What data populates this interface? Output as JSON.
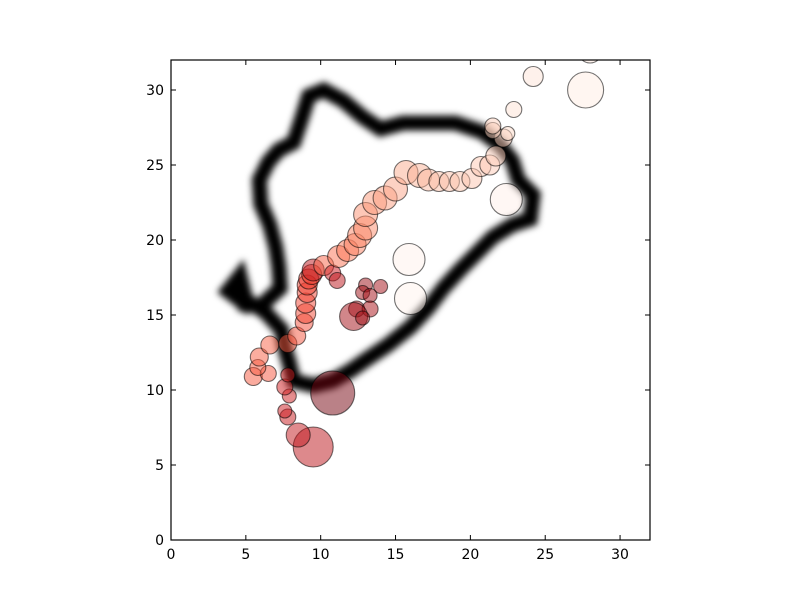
{
  "chart_data": {
    "type": "scatter",
    "title": "",
    "xlabel": "",
    "ylabel": "",
    "xlim": [
      0,
      32
    ],
    "ylim": [
      0,
      32
    ],
    "xticks": [
      0,
      5,
      10,
      15,
      20,
      25,
      30
    ],
    "yticks": [
      0,
      5,
      10,
      15,
      20,
      25,
      30
    ],
    "grid": false,
    "legend": "none",
    "colormap": "Reds",
    "marker_edge_color": "#000000",
    "marker_alpha": 0.5,
    "background_track": {
      "description_free": true,
      "color": "#000000",
      "outline": [
        [
          5.0,
          15.7
        ],
        [
          3.8,
          16.6
        ],
        [
          4.6,
          17.6
        ],
        [
          5.0,
          16.0
        ],
        [
          6.3,
          15.2
        ],
        [
          7.4,
          14.0
        ],
        [
          7.6,
          12.8
        ],
        [
          7.9,
          11.8
        ],
        [
          8.2,
          10.6
        ],
        [
          9.5,
          10.3
        ],
        [
          10.8,
          10.6
        ],
        [
          12.0,
          11.3
        ],
        [
          13.0,
          12.0
        ],
        [
          14.5,
          13.0
        ],
        [
          16.0,
          14.2
        ],
        [
          17.2,
          15.5
        ],
        [
          18.2,
          16.8
        ],
        [
          19.3,
          18.0
        ],
        [
          20.3,
          19.0
        ],
        [
          21.5,
          20.2
        ],
        [
          22.8,
          21.0
        ],
        [
          24.0,
          21.4
        ],
        [
          24.2,
          23.0
        ],
        [
          23.2,
          24.0
        ],
        [
          22.8,
          25.3
        ],
        [
          22.0,
          26.3
        ],
        [
          20.8,
          27.2
        ],
        [
          19.0,
          27.8
        ],
        [
          17.0,
          27.8
        ],
        [
          15.5,
          27.8
        ],
        [
          14.0,
          27.4
        ],
        [
          12.8,
          28.2
        ],
        [
          11.5,
          29.3
        ],
        [
          10.2,
          30.0
        ],
        [
          9.2,
          29.6
        ],
        [
          8.7,
          28.0
        ],
        [
          8.2,
          26.5
        ],
        [
          7.2,
          26.0
        ],
        [
          6.5,
          25.2
        ],
        [
          5.9,
          24.0
        ],
        [
          6.0,
          22.4
        ],
        [
          6.6,
          21.0
        ],
        [
          7.0,
          19.5
        ],
        [
          7.2,
          18.2
        ],
        [
          7.3,
          16.8
        ],
        [
          6.0,
          15.6
        ],
        [
          5.0,
          15.7
        ]
      ]
    },
    "points": [
      {
        "x": 9.5,
        "y": 6.2,
        "size": 20,
        "c": 0.8
      },
      {
        "x": 8.5,
        "y": 7.0,
        "size": 12,
        "c": 0.78
      },
      {
        "x": 7.8,
        "y": 8.2,
        "size": 8,
        "c": 0.76
      },
      {
        "x": 7.6,
        "y": 8.6,
        "size": 7,
        "c": 0.75
      },
      {
        "x": 7.9,
        "y": 9.6,
        "size": 7,
        "c": 0.74
      },
      {
        "x": 7.6,
        "y": 10.2,
        "size": 8,
        "c": 0.73
      },
      {
        "x": 10.8,
        "y": 9.8,
        "size": 22,
        "c": 0.97
      },
      {
        "x": 7.8,
        "y": 11.0,
        "size": 7,
        "c": 0.72
      },
      {
        "x": 5.5,
        "y": 10.9,
        "size": 9,
        "c": 0.55
      },
      {
        "x": 6.5,
        "y": 11.1,
        "size": 8,
        "c": 0.56
      },
      {
        "x": 5.8,
        "y": 11.5,
        "size": 8,
        "c": 0.55
      },
      {
        "x": 5.9,
        "y": 12.2,
        "size": 9,
        "c": 0.54
      },
      {
        "x": 6.6,
        "y": 13.0,
        "size": 9,
        "c": 0.53
      },
      {
        "x": 7.8,
        "y": 13.1,
        "size": 9,
        "c": 0.55
      },
      {
        "x": 8.4,
        "y": 13.6,
        "size": 9,
        "c": 0.56
      },
      {
        "x": 8.9,
        "y": 14.5,
        "size": 9,
        "c": 0.58
      },
      {
        "x": 9.0,
        "y": 15.1,
        "size": 10,
        "c": 0.59
      },
      {
        "x": 9.0,
        "y": 15.8,
        "size": 10,
        "c": 0.6
      },
      {
        "x": 9.1,
        "y": 16.5,
        "size": 10,
        "c": 0.61
      },
      {
        "x": 9.1,
        "y": 17.0,
        "size": 10,
        "c": 0.62
      },
      {
        "x": 9.2,
        "y": 17.4,
        "size": 10,
        "c": 0.63
      },
      {
        "x": 9.4,
        "y": 17.7,
        "size": 10,
        "c": 0.64
      },
      {
        "x": 9.5,
        "y": 18.0,
        "size": 11,
        "c": 0.8
      },
      {
        "x": 10.2,
        "y": 18.3,
        "size": 10,
        "c": 0.52
      },
      {
        "x": 10.8,
        "y": 17.8,
        "size": 8,
        "c": 0.75
      },
      {
        "x": 11.1,
        "y": 17.3,
        "size": 8,
        "c": 0.8
      },
      {
        "x": 11.2,
        "y": 18.9,
        "size": 11,
        "c": 0.48
      },
      {
        "x": 11.8,
        "y": 19.3,
        "size": 11,
        "c": 0.46
      },
      {
        "x": 12.3,
        "y": 19.7,
        "size": 11,
        "c": 0.44
      },
      {
        "x": 12.6,
        "y": 20.3,
        "size": 12,
        "c": 0.42
      },
      {
        "x": 13.0,
        "y": 20.8,
        "size": 12,
        "c": 0.4
      },
      {
        "x": 13.0,
        "y": 21.7,
        "size": 12,
        "c": 0.38
      },
      {
        "x": 13.6,
        "y": 22.5,
        "size": 12,
        "c": 0.36
      },
      {
        "x": 14.3,
        "y": 22.8,
        "size": 12,
        "c": 0.34
      },
      {
        "x": 15.0,
        "y": 23.4,
        "size": 12,
        "c": 0.32
      },
      {
        "x": 15.7,
        "y": 24.5,
        "size": 12,
        "c": 0.3
      },
      {
        "x": 16.6,
        "y": 24.3,
        "size": 12,
        "c": 0.28
      },
      {
        "x": 17.2,
        "y": 24.0,
        "size": 11,
        "c": 0.26
      },
      {
        "x": 17.9,
        "y": 23.9,
        "size": 10,
        "c": 0.25
      },
      {
        "x": 18.6,
        "y": 23.9,
        "size": 10,
        "c": 0.24
      },
      {
        "x": 19.3,
        "y": 23.9,
        "size": 10,
        "c": 0.23
      },
      {
        "x": 20.1,
        "y": 24.1,
        "size": 10,
        "c": 0.22
      },
      {
        "x": 20.7,
        "y": 24.9,
        "size": 10,
        "c": 0.21
      },
      {
        "x": 21.3,
        "y": 25.0,
        "size": 10,
        "c": 0.2
      },
      {
        "x": 21.7,
        "y": 25.6,
        "size": 10,
        "c": 0.19
      },
      {
        "x": 22.2,
        "y": 26.8,
        "size": 9,
        "c": 0.18
      },
      {
        "x": 21.5,
        "y": 27.3,
        "size": 8,
        "c": 0.17
      },
      {
        "x": 21.5,
        "y": 27.6,
        "size": 8,
        "c": 0.18
      },
      {
        "x": 22.5,
        "y": 27.1,
        "size": 7,
        "c": 0.15
      },
      {
        "x": 22.9,
        "y": 28.7,
        "size": 8,
        "c": 0.12
      },
      {
        "x": 24.2,
        "y": 30.9,
        "size": 10,
        "c": 0.1
      },
      {
        "x": 27.7,
        "y": 30.0,
        "size": 18,
        "c": 0.05
      },
      {
        "x": 28.0,
        "y": 32.6,
        "size": 12,
        "c": 0.08
      },
      {
        "x": 22.4,
        "y": 22.7,
        "size": 16,
        "c": 0.03
      },
      {
        "x": 15.9,
        "y": 18.7,
        "size": 16,
        "c": 0.02
      },
      {
        "x": 16.0,
        "y": 16.1,
        "size": 16,
        "c": 0.01
      },
      {
        "x": 13.0,
        "y": 17.0,
        "size": 7,
        "c": 0.9
      },
      {
        "x": 14.0,
        "y": 16.9,
        "size": 7,
        "c": 0.88
      },
      {
        "x": 12.8,
        "y": 16.5,
        "size": 7,
        "c": 0.89
      },
      {
        "x": 13.3,
        "y": 16.3,
        "size": 7,
        "c": 0.88
      },
      {
        "x": 12.4,
        "y": 15.4,
        "size": 8,
        "c": 0.87
      },
      {
        "x": 13.3,
        "y": 15.4,
        "size": 8,
        "c": 0.86
      },
      {
        "x": 12.2,
        "y": 14.9,
        "size": 14,
        "c": 0.88
      },
      {
        "x": 12.8,
        "y": 14.8,
        "size": 7,
        "c": 0.89
      }
    ]
  }
}
